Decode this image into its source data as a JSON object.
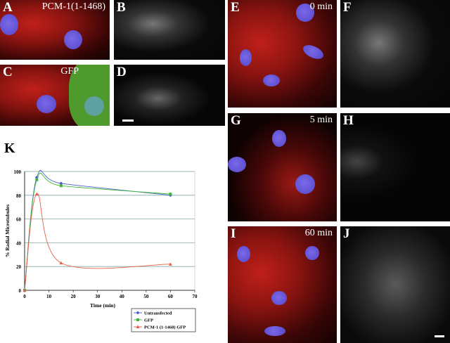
{
  "panels": {
    "A": {
      "letter": "A",
      "caption": "PCM-1(1-1468)"
    },
    "B": {
      "letter": "B"
    },
    "C": {
      "letter": "C",
      "caption": "GFP"
    },
    "D": {
      "letter": "D"
    },
    "E": {
      "letter": "E",
      "caption": "0 min"
    },
    "F": {
      "letter": "F"
    },
    "G": {
      "letter": "G",
      "caption": "5 min"
    },
    "H": {
      "letter": "H"
    },
    "I": {
      "letter": "I",
      "caption": "60 min"
    },
    "J": {
      "letter": "J"
    }
  },
  "chart_label": "K",
  "chart_data": {
    "type": "line",
    "xlabel": "Time (min)",
    "ylabel": "% Radial Microtubules",
    "xlim": [
      0,
      70
    ],
    "ylim": [
      0,
      100
    ],
    "xticks": [
      0,
      10,
      20,
      30,
      40,
      50,
      60,
      70
    ],
    "yticks": [
      0,
      20,
      40,
      60,
      80,
      100
    ],
    "grid": "horizontal",
    "legend": "bottom-right",
    "series": [
      {
        "name": "Untransfected",
        "color": "#4a5fd0",
        "marker": "diamond",
        "x": [
          0,
          5,
          15,
          60
        ],
        "y": [
          0,
          95,
          90,
          80
        ]
      },
      {
        "name": "GFP",
        "color": "#3fb83a",
        "marker": "square",
        "x": [
          0,
          5,
          15,
          60
        ],
        "y": [
          0,
          93,
          88,
          81
        ]
      },
      {
        "name": "PCM-1 (1-1468) GFP",
        "color": "#e8604a",
        "marker": "triangle",
        "x": [
          0,
          5,
          15,
          60
        ],
        "y": [
          0,
          81,
          23,
          22
        ]
      }
    ]
  }
}
